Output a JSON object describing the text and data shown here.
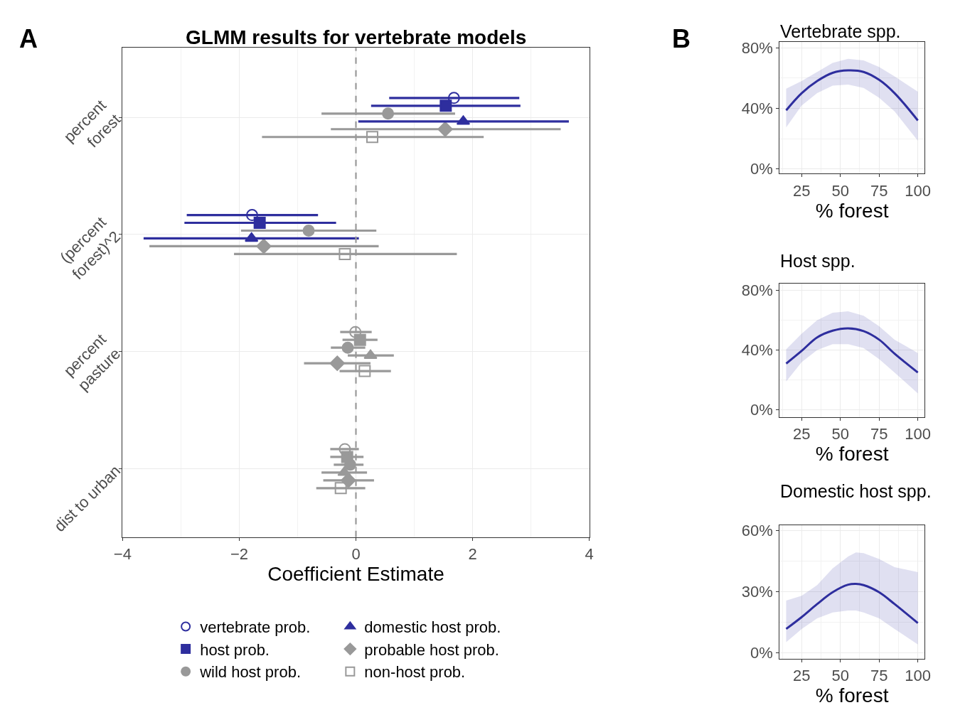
{
  "chart_data": [
    {
      "type": "scatter",
      "orientation": "horizontal",
      "title": "GLMM results for vertebrate models",
      "xlabel": "Coefficient Estimate",
      "categories": [
        "percent\nforest",
        "(percent\nforest)^2",
        "percent\npasture",
        "dist to urban"
      ],
      "series": [
        {
          "name": "vertebrate prob.",
          "marker": "circle-open",
          "colors": [
            "#2e2e9e",
            "#2e2e9e",
            "#999999",
            "#999999"
          ],
          "values": [
            1.68,
            -1.78,
            -0.01,
            -0.19
          ],
          "errors": [
            [
              0.57,
              2.8
            ],
            [
              -2.9,
              -0.65
            ],
            [
              -0.27,
              0.27
            ],
            [
              -0.44,
              0.05
            ]
          ]
        },
        {
          "name": "host prob.",
          "marker": "square",
          "colors": [
            "#2e2e9e",
            "#2e2e9e",
            "#999999",
            "#999999"
          ],
          "values": [
            1.54,
            -1.65,
            0.07,
            -0.15
          ],
          "errors": [
            [
              0.26,
              2.82
            ],
            [
              -2.94,
              -0.34
            ],
            [
              -0.23,
              0.37
            ],
            [
              -0.44,
              0.13
            ]
          ]
        },
        {
          "name": "wild host prob.",
          "marker": "circle",
          "colors": [
            "#999999",
            "#999999",
            "#999999",
            "#999999"
          ],
          "values": [
            0.55,
            -0.81,
            -0.14,
            -0.1
          ],
          "errors": [
            [
              -0.59,
              1.7
            ],
            [
              -1.97,
              0.35
            ],
            [
              -0.43,
              0.16
            ],
            [
              -0.38,
              0.13
            ]
          ]
        },
        {
          "name": "domestic host prob.",
          "marker": "triangle",
          "colors": [
            "#2e2e9e",
            "#2e2e9e",
            "#999999",
            "#999999"
          ],
          "values": [
            1.84,
            -1.79,
            0.25,
            -0.2
          ],
          "errors": [
            [
              0.04,
              3.65
            ],
            [
              -3.64,
              0.05
            ],
            [
              -0.14,
              0.65
            ],
            [
              -0.59,
              0.19
            ]
          ]
        },
        {
          "name": "probable host prob.",
          "marker": "diamond",
          "colors": [
            "#999999",
            "#999999",
            "#999999",
            "#999999"
          ],
          "values": [
            1.53,
            -1.58,
            -0.32,
            -0.13
          ],
          "errors": [
            [
              -0.43,
              3.51
            ],
            [
              -3.54,
              0.39
            ],
            [
              -0.89,
              0.25
            ],
            [
              -0.56,
              0.31
            ]
          ]
        },
        {
          "name": "non-host prob.",
          "marker": "square-open",
          "colors": [
            "#999999",
            "#999999",
            "#999999",
            "#999999"
          ],
          "values": [
            0.28,
            -0.19,
            0.15,
            -0.26
          ],
          "errors": [
            [
              -1.61,
              2.19
            ],
            [
              -2.09,
              1.73
            ],
            [
              -0.28,
              0.6
            ],
            [
              -0.68,
              0.16
            ]
          ]
        }
      ],
      "xlim": [
        -4,
        4
      ],
      "xticks": [
        {
          "value": -4,
          "label": "−4"
        },
        {
          "value": -3,
          "label": null
        },
        {
          "value": -2,
          "label": "−2"
        },
        {
          "value": -1,
          "label": null
        },
        0,
        {
          "value": 1,
          "label": null
        },
        2,
        {
          "value": 3,
          "label": null
        },
        4
      ],
      "ref_lines": [
        {
          "axis": "x",
          "value": 0,
          "label": null,
          "color": "#999999",
          "line_style": "dashed"
        }
      ],
      "grid": true,
      "legend": "bottom",
      "annotations": [
        "A"
      ]
    },
    {
      "type": "line",
      "title": "Vertebrate spp.",
      "xlabel": "% forest",
      "x": [
        15,
        25,
        35,
        45,
        55,
        65,
        75,
        85,
        100
      ],
      "series": [
        {
          "color": "#2e2e9e",
          "values": [
            38.7,
            50,
            58,
            63.4,
            65,
            64,
            58.8,
            50,
            32
          ],
          "lower": [
            27.4,
            41.8,
            50,
            55,
            55.7,
            53.4,
            47,
            38,
            18.6
          ],
          "upper": [
            53,
            58,
            64,
            70,
            72.7,
            71.6,
            67.3,
            61,
            51
          ]
        }
      ],
      "xlim": [
        10.75,
        104.25
      ],
      "xticks": [
        {
          "value": 12.5,
          "label": null
        },
        25,
        {
          "value": 37.5,
          "label": null
        },
        50,
        {
          "value": 62.5,
          "label": null
        },
        75,
        {
          "value": 87.5,
          "label": null
        },
        100
      ],
      "ylim": [
        -3.1,
        83.6
      ],
      "yticks": [
        {
          "value": 0,
          "label": "0%"
        },
        {
          "value": 20,
          "label": null
        },
        {
          "value": 40,
          "label": "40%"
        },
        {
          "value": 60,
          "label": null
        },
        {
          "value": 80,
          "label": "80%"
        }
      ],
      "grid": true,
      "annotations": [
        "B"
      ]
    },
    {
      "type": "line",
      "title": "Host spp.",
      "xlabel": "% forest",
      "x": [
        15,
        25,
        35,
        45,
        55,
        65,
        75,
        85,
        100
      ],
      "series": [
        {
          "color": "#2e2e9e",
          "values": [
            31,
            39.5,
            48.5,
            53,
            54.6,
            52.7,
            47,
            37.6,
            25
          ],
          "lower": [
            19,
            32,
            40,
            44,
            44,
            41.4,
            34,
            25,
            11
          ],
          "upper": [
            40.5,
            51,
            60,
            65,
            66,
            63,
            56,
            47,
            38
          ]
        }
      ],
      "xlim": [
        10.75,
        104.25
      ],
      "xticks": [
        {
          "value": 12.5,
          "label": null
        },
        25,
        {
          "value": 37.5,
          "label": null
        },
        50,
        {
          "value": 62.5,
          "label": null
        },
        75,
        {
          "value": 87.5,
          "label": null
        },
        100
      ],
      "ylim": [
        -4.7,
        84.7
      ],
      "yticks": [
        {
          "value": 0,
          "label": "0%"
        },
        {
          "value": 20,
          "label": null
        },
        {
          "value": 40,
          "label": "40%"
        },
        {
          "value": 60,
          "label": null
        },
        {
          "value": 80,
          "label": "80%"
        }
      ],
      "grid": true
    },
    {
      "type": "line",
      "title": "Domestic host spp.",
      "xlabel": "% forest",
      "x": [
        15,
        25,
        35,
        45,
        55,
        60,
        65,
        75,
        85,
        100
      ],
      "series": [
        {
          "color": "#2e2e9e",
          "values": [
            11.7,
            17.5,
            23.9,
            29.7,
            33.4,
            33.8,
            33.2,
            29.7,
            23.9,
            14.6
          ],
          "lower": [
            5.2,
            11.7,
            16.9,
            19.8,
            20.7,
            20.7,
            19.8,
            16.9,
            11.7,
            4.1
          ],
          "upper": [
            25.6,
            28,
            33.2,
            41.4,
            47.2,
            49.2,
            48.9,
            46,
            42,
            39.6
          ]
        }
      ],
      "xlim": [
        10.75,
        104.25
      ],
      "xticks": [
        {
          "value": 12.5,
          "label": null
        },
        25,
        {
          "value": 37.5,
          "label": null
        },
        50,
        {
          "value": 62.5,
          "label": null
        },
        75,
        {
          "value": 87.5,
          "label": null
        },
        100
      ],
      "ylim": [
        -2.9,
        62.6
      ],
      "yticks": [
        {
          "value": 0,
          "label": "0%"
        },
        {
          "value": 15,
          "label": null
        },
        {
          "value": 30,
          "label": "30%"
        },
        {
          "value": 45,
          "label": null
        },
        {
          "value": 60,
          "label": "60%"
        }
      ],
      "grid": true
    }
  ]
}
